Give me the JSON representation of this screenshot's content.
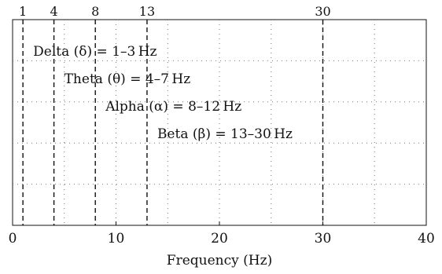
{
  "chart_data": {
    "type": "annotated-axis",
    "xlabel": "Frequency (Hz)",
    "xlim": [
      0,
      40
    ],
    "x_ticks": [
      {
        "value": 0,
        "label": "0"
      },
      {
        "value": 10,
        "label": "10"
      },
      {
        "value": 20,
        "label": "20"
      },
      {
        "value": 30,
        "label": "30"
      },
      {
        "value": 40,
        "label": "40"
      }
    ],
    "x_grid": [
      5,
      10,
      15,
      20,
      25,
      30,
      35
    ],
    "y_grid_rows": 5,
    "grid": true,
    "boundaries": [
      {
        "value": 1,
        "label": "1"
      },
      {
        "value": 4,
        "label": "4"
      },
      {
        "value": 8,
        "label": "8"
      },
      {
        "value": 13,
        "label": "13"
      },
      {
        "value": 30,
        "label": "30"
      }
    ],
    "bands": [
      {
        "label": "Delta (δ) = 1–3 Hz",
        "start": 1,
        "end": 3
      },
      {
        "label": "Theta (θ) = 4–7 Hz",
        "start": 4,
        "end": 7
      },
      {
        "label": "Alpha (α) = 8–12 Hz",
        "start": 8,
        "end": 12
      },
      {
        "label": "Beta (β) = 13–30 Hz",
        "start": 13,
        "end": 30
      }
    ]
  }
}
